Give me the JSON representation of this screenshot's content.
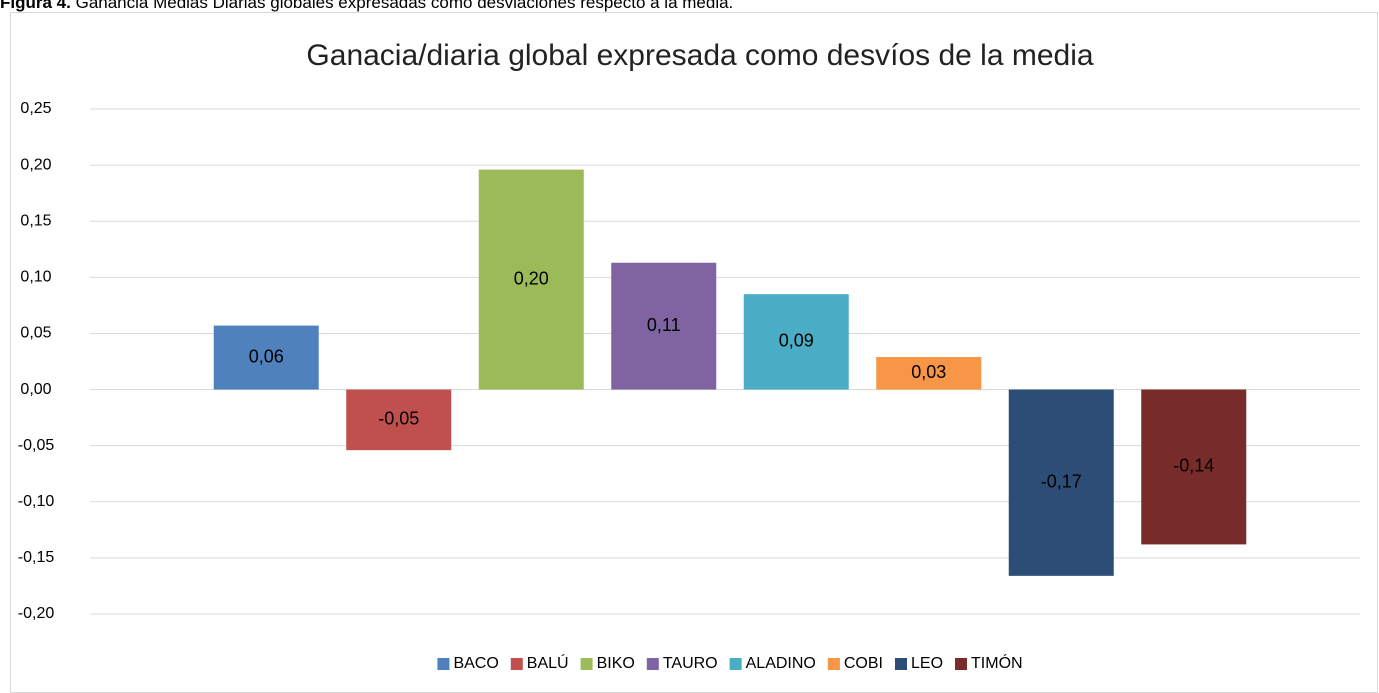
{
  "caption": {
    "label": "Figura 4.",
    "text": "Ganancia Medias Diarias globales expresadas como desviaciones respecto a la media."
  },
  "chart_data": {
    "type": "bar",
    "title": "Ganacia/diaria global expresada como desvíos de la media",
    "series": [
      {
        "name": "BACO",
        "color": "#4f81bd",
        "values": [
          0.057
        ],
        "value_labels": [
          "0,06"
        ]
      },
      {
        "name": "BALÚ",
        "color": "#c0504d",
        "values": [
          -0.054
        ],
        "value_labels": [
          "-0,05"
        ]
      },
      {
        "name": "BIKO",
        "color": "#9bbb59",
        "values": [
          0.196
        ],
        "value_labels": [
          "0,20"
        ]
      },
      {
        "name": "TAURO",
        "color": "#8064a2",
        "values": [
          0.113
        ],
        "value_labels": [
          "0,11"
        ]
      },
      {
        "name": "ALADINO",
        "color": "#4bacc6",
        "values": [
          0.085
        ],
        "value_labels": [
          "0,09"
        ]
      },
      {
        "name": "COBI",
        "color": "#f79646",
        "values": [
          0.029
        ],
        "value_labels": [
          "0,03"
        ]
      },
      {
        "name": "LEO",
        "color": "#2c4d75",
        "values": [
          -0.166
        ],
        "value_labels": [
          "-0,17"
        ]
      },
      {
        "name": "TIMÓN",
        "color": "#772c2a",
        "values": [
          -0.138
        ],
        "value_labels": [
          "-0,14"
        ]
      }
    ],
    "ylim": [
      -0.2,
      0.25
    ],
    "yticks": [
      {
        "value": -0.2,
        "label": "-0,20"
      },
      {
        "value": -0.15,
        "label": "-0,15"
      },
      {
        "value": -0.1,
        "label": "-0,10"
      },
      {
        "value": -0.05,
        "label": "-0,05"
      },
      {
        "value": 0,
        "label": "0,00"
      },
      {
        "value": 0.05,
        "label": "0,05"
      },
      {
        "value": 0.1,
        "label": "0,10"
      },
      {
        "value": 0.15,
        "label": "0,15"
      },
      {
        "value": 0.2,
        "label": "0,20"
      },
      {
        "value": 0.25,
        "label": "0,25"
      }
    ],
    "grid": true,
    "legend": "bottom"
  }
}
